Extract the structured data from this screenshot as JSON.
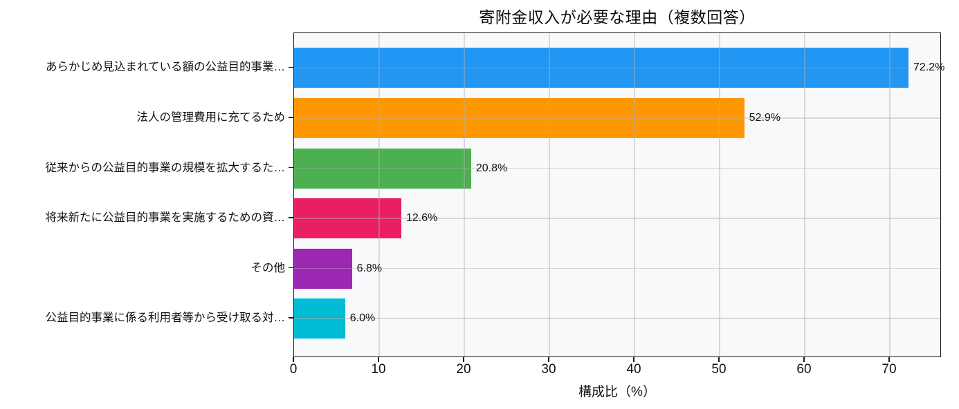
{
  "chart_data": {
    "type": "bar",
    "orientation": "horizontal",
    "title": "寄附金収入が必要な理由（複数回答）",
    "xlabel": "構成比（%）",
    "ylabel": "",
    "categories": [
      "あらかじめ見込まれている額の公益目的事業…",
      "法人の管理費用に充てるため",
      "従来からの公益目的事業の規模を拡大するた…",
      "将来新たに公益目的事業を実施するための資…",
      "その他",
      "公益目的事業に係る利用者等から受け取る対…"
    ],
    "values": [
      72.2,
      52.9,
      20.8,
      12.6,
      6.8,
      6.0
    ],
    "value_labels": [
      "72.2%",
      "52.9%",
      "20.8%",
      "12.6%",
      "6.8%",
      "6.0%"
    ],
    "bar_colors": [
      "#2196f3",
      "#ff9800",
      "#4caf50",
      "#e91e63",
      "#9c27b0",
      "#00bcd4"
    ],
    "x_ticks": [
      0,
      10,
      20,
      30,
      40,
      50,
      60,
      70
    ],
    "xlim": [
      0,
      76.1
    ],
    "grid": true,
    "legend": false,
    "plot_background": "#f8f9fa",
    "grid_color": "rgba(174,176,180,0.45)"
  }
}
